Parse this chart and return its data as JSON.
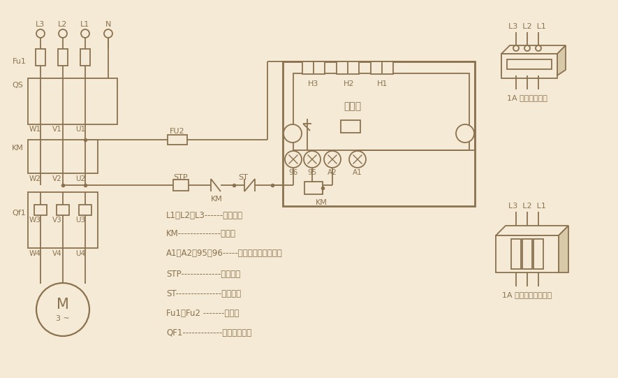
{
  "bg_color": "#f5ead5",
  "lc": "#8a7250",
  "legend_items": [
    "L1、L2、L3------三相电源",
    "KM--------------接触器",
    "A1、A2、95、96-----保护器接线端子号码",
    "STP-------------停止按钮",
    "ST---------------启动按钮",
    "Fu1、Fu2 -------熔断器",
    "QF1-------------电动机保护器"
  ],
  "font_candidates": [
    "SimHei",
    "Microsoft YaHei",
    "WenQuanYi Micro Hei",
    "Noto Sans CJK SC",
    "STHeiti",
    "PingFang SC",
    "Arial Unicode MS",
    "DejaVu Sans"
  ]
}
